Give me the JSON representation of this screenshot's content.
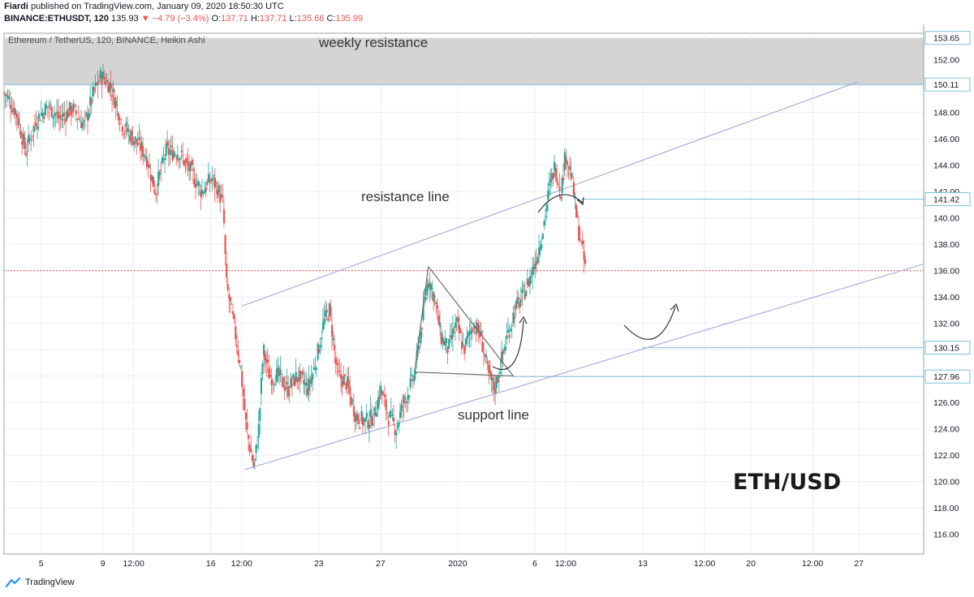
{
  "header": {
    "author": "Fiardi",
    "published": "published on TradingView.com, January 09, 2020 18:50:30 UTC",
    "symbol": "BINANCE:ETHUSDT, 120",
    "last": "135.93",
    "change_arrow": "▼",
    "change": "−4.79 (−3.4%)",
    "o_label": "O:",
    "o": "137.71",
    "h_label": "H:",
    "h": "137.71",
    "l_label": "L:",
    "l": "135.66",
    "c_label": "C:",
    "c": "135.99"
  },
  "footer": {
    "brand": "TradingView"
  },
  "colors": {
    "up": "#26a69a",
    "down": "#ef5350",
    "grid": "#e9eef5",
    "channel": "#aaaedc",
    "level": "#7ec0d8",
    "zone": "#cfcfcf",
    "price_line": "#ef5350",
    "axis_text": "#131722"
  },
  "chart_data": {
    "type": "candlestick",
    "title": "Ethereum / TetherUS, 120, BINANCE, Heikin Ashi",
    "xlabel": "",
    "ylabel": "",
    "ylim": [
      114.5,
      154.0
    ],
    "grid": true,
    "y_ticks": [
      116,
      118,
      120,
      122,
      124,
      126,
      128,
      130,
      132,
      134,
      136,
      138,
      140,
      142,
      144,
      146,
      148,
      150,
      152
    ],
    "y_tick_labels": [
      "116.00",
      "118.00",
      "120.00",
      "122.00",
      "124.00",
      "126.00",
      "128.00",
      "130.00",
      "132.00",
      "134.00",
      "136.00",
      "138.00",
      "140.00",
      "142.00",
      "144.00",
      "146.00",
      "148.00",
      "150.00",
      "152.00"
    ],
    "x_ticks": [
      {
        "label": "5",
        "day": 5
      },
      {
        "label": "9",
        "day": 9
      },
      {
        "label": "12:00",
        "day": 11
      },
      {
        "label": "16",
        "day": 16
      },
      {
        "label": "12:00",
        "day": 18
      },
      {
        "label": "23",
        "day": 23
      },
      {
        "label": "27",
        "day": 27
      },
      {
        "label": "2020",
        "day": 32
      },
      {
        "label": "6",
        "day": 37
      },
      {
        "label": "12:00",
        "day": 39
      },
      {
        "label": "13",
        "day": 44
      },
      {
        "label": "12:00",
        "day": 48
      },
      {
        "label": "20",
        "day": 51
      },
      {
        "label": "12:00",
        "day": 55
      },
      {
        "label": "27",
        "day": 58
      }
    ],
    "x_range": [
      2.6,
      62.2
    ],
    "price_path": [
      [
        2.6,
        149.5
      ],
      [
        3.4,
        148.0
      ],
      [
        4.0,
        145.0
      ],
      [
        4.7,
        147.5
      ],
      [
        5.5,
        148.5
      ],
      [
        6.2,
        147.5
      ],
      [
        7.0,
        148.3
      ],
      [
        7.8,
        147.0
      ],
      [
        8.4,
        149.5
      ],
      [
        8.9,
        150.8
      ],
      [
        9.5,
        150.0
      ],
      [
        10.3,
        147.0
      ],
      [
        11.0,
        146.0
      ],
      [
        11.8,
        144.8
      ],
      [
        12.4,
        142.0
      ],
      [
        13.1,
        145.0
      ],
      [
        13.9,
        145.0
      ],
      [
        14.7,
        143.5
      ],
      [
        15.4,
        142.0
      ],
      [
        16.1,
        143.0
      ],
      [
        16.5,
        142.0
      ],
      [
        16.8,
        141.0
      ],
      [
        17.0,
        135.0
      ],
      [
        17.4,
        132.5
      ],
      [
        17.9,
        129.0
      ],
      [
        18.3,
        124.0
      ],
      [
        18.8,
        121.0
      ],
      [
        19.1,
        124.0
      ],
      [
        19.4,
        130.0
      ],
      [
        19.8,
        128.0
      ],
      [
        20.4,
        128.0
      ],
      [
        21.0,
        127.0
      ],
      [
        21.6,
        128.0
      ],
      [
        22.3,
        127.0
      ],
      [
        22.8,
        129.0
      ],
      [
        23.3,
        132.0
      ],
      [
        23.7,
        133.0
      ],
      [
        24.2,
        128.0
      ],
      [
        24.8,
        127.5
      ],
      [
        25.4,
        125.0
      ],
      [
        26.0,
        124.5
      ],
      [
        26.6,
        125.0
      ],
      [
        27.0,
        127.0
      ],
      [
        27.5,
        125.0
      ],
      [
        28.0,
        124.0
      ],
      [
        28.5,
        126.0
      ],
      [
        29.2,
        128.0
      ],
      [
        29.8,
        133.0
      ],
      [
        30.1,
        135.5
      ],
      [
        30.5,
        134.0
      ],
      [
        30.9,
        131.0
      ],
      [
        31.4,
        130.0
      ],
      [
        31.9,
        132.0
      ],
      [
        32.4,
        130.0
      ],
      [
        33.0,
        132.0
      ],
      [
        33.5,
        131.0
      ],
      [
        34.0,
        128.0
      ],
      [
        34.4,
        127.0
      ],
      [
        34.8,
        129.0
      ],
      [
        35.2,
        131.0
      ],
      [
        35.7,
        133.0
      ],
      [
        36.2,
        134.0
      ],
      [
        36.7,
        135.5
      ],
      [
        37.1,
        137.0
      ],
      [
        37.5,
        139.0
      ],
      [
        37.9,
        142.0
      ],
      [
        38.3,
        144.0
      ],
      [
        38.7,
        142.0
      ],
      [
        39.0,
        145.0
      ],
      [
        39.4,
        143.0
      ],
      [
        39.7,
        140.0
      ],
      [
        40.0,
        138.0
      ],
      [
        40.3,
        136.0
      ]
    ],
    "annotations": {
      "channel_upper": [
        [
          18.0,
          133.3
        ],
        [
          57.9,
          150.3
        ]
      ],
      "channel_lower": [
        [
          18.2,
          120.9
        ],
        [
          62.2,
          136.5
        ]
      ],
      "weekly_zone": [
        150.11,
        153.65
      ],
      "levels": [
        {
          "value": 150.11,
          "label": "150.11",
          "x_start": 2.6
        },
        {
          "value": 141.42,
          "label": "141.42",
          "x_start": 40.0
        },
        {
          "value": 130.15,
          "label": "130.15",
          "x_start": 44.0
        },
        {
          "value": 127.96,
          "label": "127.96",
          "x_start": 35.6
        }
      ],
      "zone_top_label": "153.65",
      "current_price": 135.99,
      "triangle": [
        [
          30.1,
          136.3
        ],
        [
          35.6,
          128.0
        ],
        [
          29.2,
          128.3
        ]
      ],
      "texts": {
        "weekly": "weekly resistance",
        "resistance": "resistance line",
        "support": "support line",
        "pair": "ETH/USD"
      }
    }
  }
}
